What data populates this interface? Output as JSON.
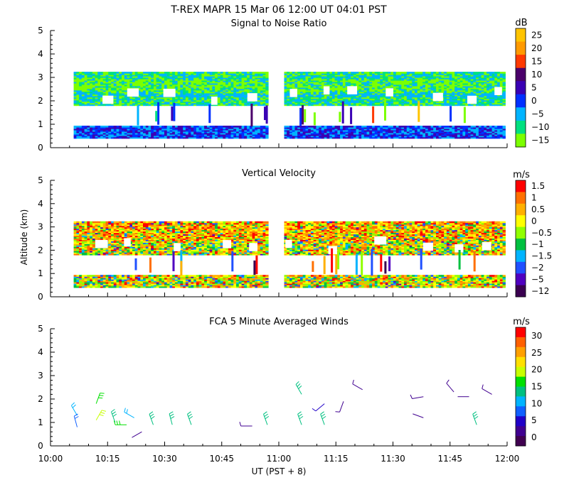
{
  "title": "T-REX   MAPR 15 Mar 06   12:00 UT   04:01   PST",
  "xaxis": {
    "label": "UT  (PST + 8)",
    "ticks": [
      "10:00",
      "10:15",
      "10:30",
      "10:45",
      "11:00",
      "11:15",
      "11:30",
      "11:45",
      "12:00"
    ]
  },
  "shared_ylabel": "Altitude (km)",
  "chart_data": [
    {
      "type": "heatmap",
      "title": "Signal to Noise Ratio",
      "xlabel": "UT  (PST + 8)",
      "ylabel": "Altitude (km)",
      "xlim": [
        "10:00",
        "12:00"
      ],
      "ylim": [
        0,
        5
      ],
      "yticks": [
        "0",
        "1",
        "2",
        "3",
        "4",
        "5"
      ],
      "colorbar": {
        "unit": "dB",
        "labels": [
          "25",
          "20",
          "15",
          "10",
          "5",
          "0",
          "−5",
          "−10",
          "−15"
        ],
        "colors": [
          "#ffc400",
          "#ff9a00",
          "#ff3a00",
          "#4a006a",
          "#3a00b4",
          "#0030ff",
          "#00b4ff",
          "#00e080",
          "#7cff00"
        ]
      },
      "data_gaps": [
        [
          "09:58",
          "10:06"
        ],
        [
          "10:57",
          "11:01"
        ]
      ],
      "layers": [
        {
          "altitude_km": [
            0.4,
            0.9
          ],
          "value_range_db": [
            -5,
            5
          ],
          "note_value": 0
        },
        {
          "altitude_km": [
            1.8,
            3.2
          ],
          "value_range_db": [
            -15,
            -5
          ],
          "note_value": -10
        }
      ]
    },
    {
      "type": "heatmap",
      "title": "Vertical Velocity",
      "xlabel": "UT  (PST + 8)",
      "ylabel": "Altitude (km)",
      "xlim": [
        "10:00",
        "12:00"
      ],
      "ylim": [
        0,
        5
      ],
      "yticks": [
        "0",
        "1",
        "2",
        "3",
        "4",
        "5"
      ],
      "colorbar": {
        "unit": "m/s",
        "labels": [
          "1.5",
          "1",
          "0.5",
          "0",
          "−0.5",
          "−1",
          "−1.5",
          "−2",
          "−5",
          "−12"
        ],
        "colors": [
          "#ff0000",
          "#ff7000",
          "#ffb000",
          "#ffff00",
          "#90ff00",
          "#00c040",
          "#00b4ff",
          "#2050ff",
          "#5000c0",
          "#3a0050"
        ]
      },
      "data_gaps": [
        [
          "09:58",
          "10:06"
        ],
        [
          "10:57",
          "11:01"
        ]
      ],
      "layers": [
        {
          "altitude_km": [
            0.4,
            0.9
          ],
          "value_range_ms": [
            -2,
            1
          ]
        },
        {
          "altitude_km": [
            1.8,
            3.2
          ],
          "value_range_ms": [
            -1,
            1.5
          ]
        }
      ]
    },
    {
      "type": "scatter",
      "subtype": "wind-barbs",
      "title": "FCA 5 Minute Averaged Winds",
      "xlabel": "UT  (PST + 8)",
      "ylabel": "Altitude (km)",
      "xlim": [
        "10:00",
        "12:00"
      ],
      "ylim": [
        0,
        5
      ],
      "yticks": [
        "0",
        "1",
        "2",
        "3",
        "4",
        "5"
      ],
      "colorbar": {
        "unit": "m/s",
        "labels": [
          "30",
          "25",
          "20",
          "15",
          "10",
          "5",
          "0"
        ],
        "colors": [
          "#ff0000",
          "#ff6000",
          "#ffa000",
          "#ffe000",
          "#c8ff00",
          "#00e000",
          "#00c080",
          "#00b4ff",
          "#1060ff",
          "#2000c8",
          "#400090",
          "#400050"
        ]
      },
      "barbs": [
        {
          "time": "10:07",
          "altitude_km": 1.3,
          "speed_ms": 10,
          "dir_deg": 330
        },
        {
          "time": "10:07",
          "altitude_km": 0.8,
          "speed_ms": 8,
          "dir_deg": 345
        },
        {
          "time": "10:12",
          "altitude_km": 1.1,
          "speed_ms": 20,
          "dir_deg": 30
        },
        {
          "time": "10:12",
          "altitude_km": 1.8,
          "speed_ms": 15,
          "dir_deg": 20
        },
        {
          "time": "10:17",
          "altitude_km": 1.0,
          "speed_ms": 14,
          "dir_deg": 340
        },
        {
          "time": "10:20",
          "altitude_km": 0.9,
          "speed_ms": 15,
          "dir_deg": 270
        },
        {
          "time": "10:22",
          "altitude_km": 1.2,
          "speed_ms": 10,
          "dir_deg": 300
        },
        {
          "time": "10:24",
          "altitude_km": 0.6,
          "speed_ms": 2,
          "dir_deg": 240
        },
        {
          "time": "10:27",
          "altitude_km": 0.9,
          "speed_ms": 14,
          "dir_deg": 340
        },
        {
          "time": "10:32",
          "altitude_km": 0.9,
          "speed_ms": 14,
          "dir_deg": 345
        },
        {
          "time": "10:37",
          "altitude_km": 0.9,
          "speed_ms": 14,
          "dir_deg": 340
        },
        {
          "time": "10:53",
          "altitude_km": 0.85,
          "speed_ms": 3,
          "dir_deg": 270
        },
        {
          "time": "10:57",
          "altitude_km": 0.9,
          "speed_ms": 14,
          "dir_deg": 340
        },
        {
          "time": "11:06",
          "altitude_km": 2.2,
          "speed_ms": 14,
          "dir_deg": 330
        },
        {
          "time": "11:06",
          "altitude_km": 0.9,
          "speed_ms": 14,
          "dir_deg": 340
        },
        {
          "time": "11:12",
          "altitude_km": 1.8,
          "speed_ms": 5,
          "dir_deg": 230
        },
        {
          "time": "11:12",
          "altitude_km": 0.9,
          "speed_ms": 14,
          "dir_deg": 340
        },
        {
          "time": "11:17",
          "altitude_km": 1.9,
          "speed_ms": 4,
          "dir_deg": 200
        },
        {
          "time": "11:22",
          "altitude_km": 2.4,
          "speed_ms": 3,
          "dir_deg": 300
        },
        {
          "time": "11:38",
          "altitude_km": 2.1,
          "speed_ms": 3,
          "dir_deg": 260
        },
        {
          "time": "11:38",
          "altitude_km": 1.2,
          "speed_ms": 2,
          "dir_deg": 290
        },
        {
          "time": "11:46",
          "altitude_km": 2.3,
          "speed_ms": 3,
          "dir_deg": 320
        },
        {
          "time": "11:50",
          "altitude_km": 2.1,
          "speed_ms": 2,
          "dir_deg": 270
        },
        {
          "time": "11:52",
          "altitude_km": 0.9,
          "speed_ms": 14,
          "dir_deg": 340
        },
        {
          "time": "11:56",
          "altitude_km": 2.2,
          "speed_ms": 4,
          "dir_deg": 300
        }
      ]
    }
  ]
}
